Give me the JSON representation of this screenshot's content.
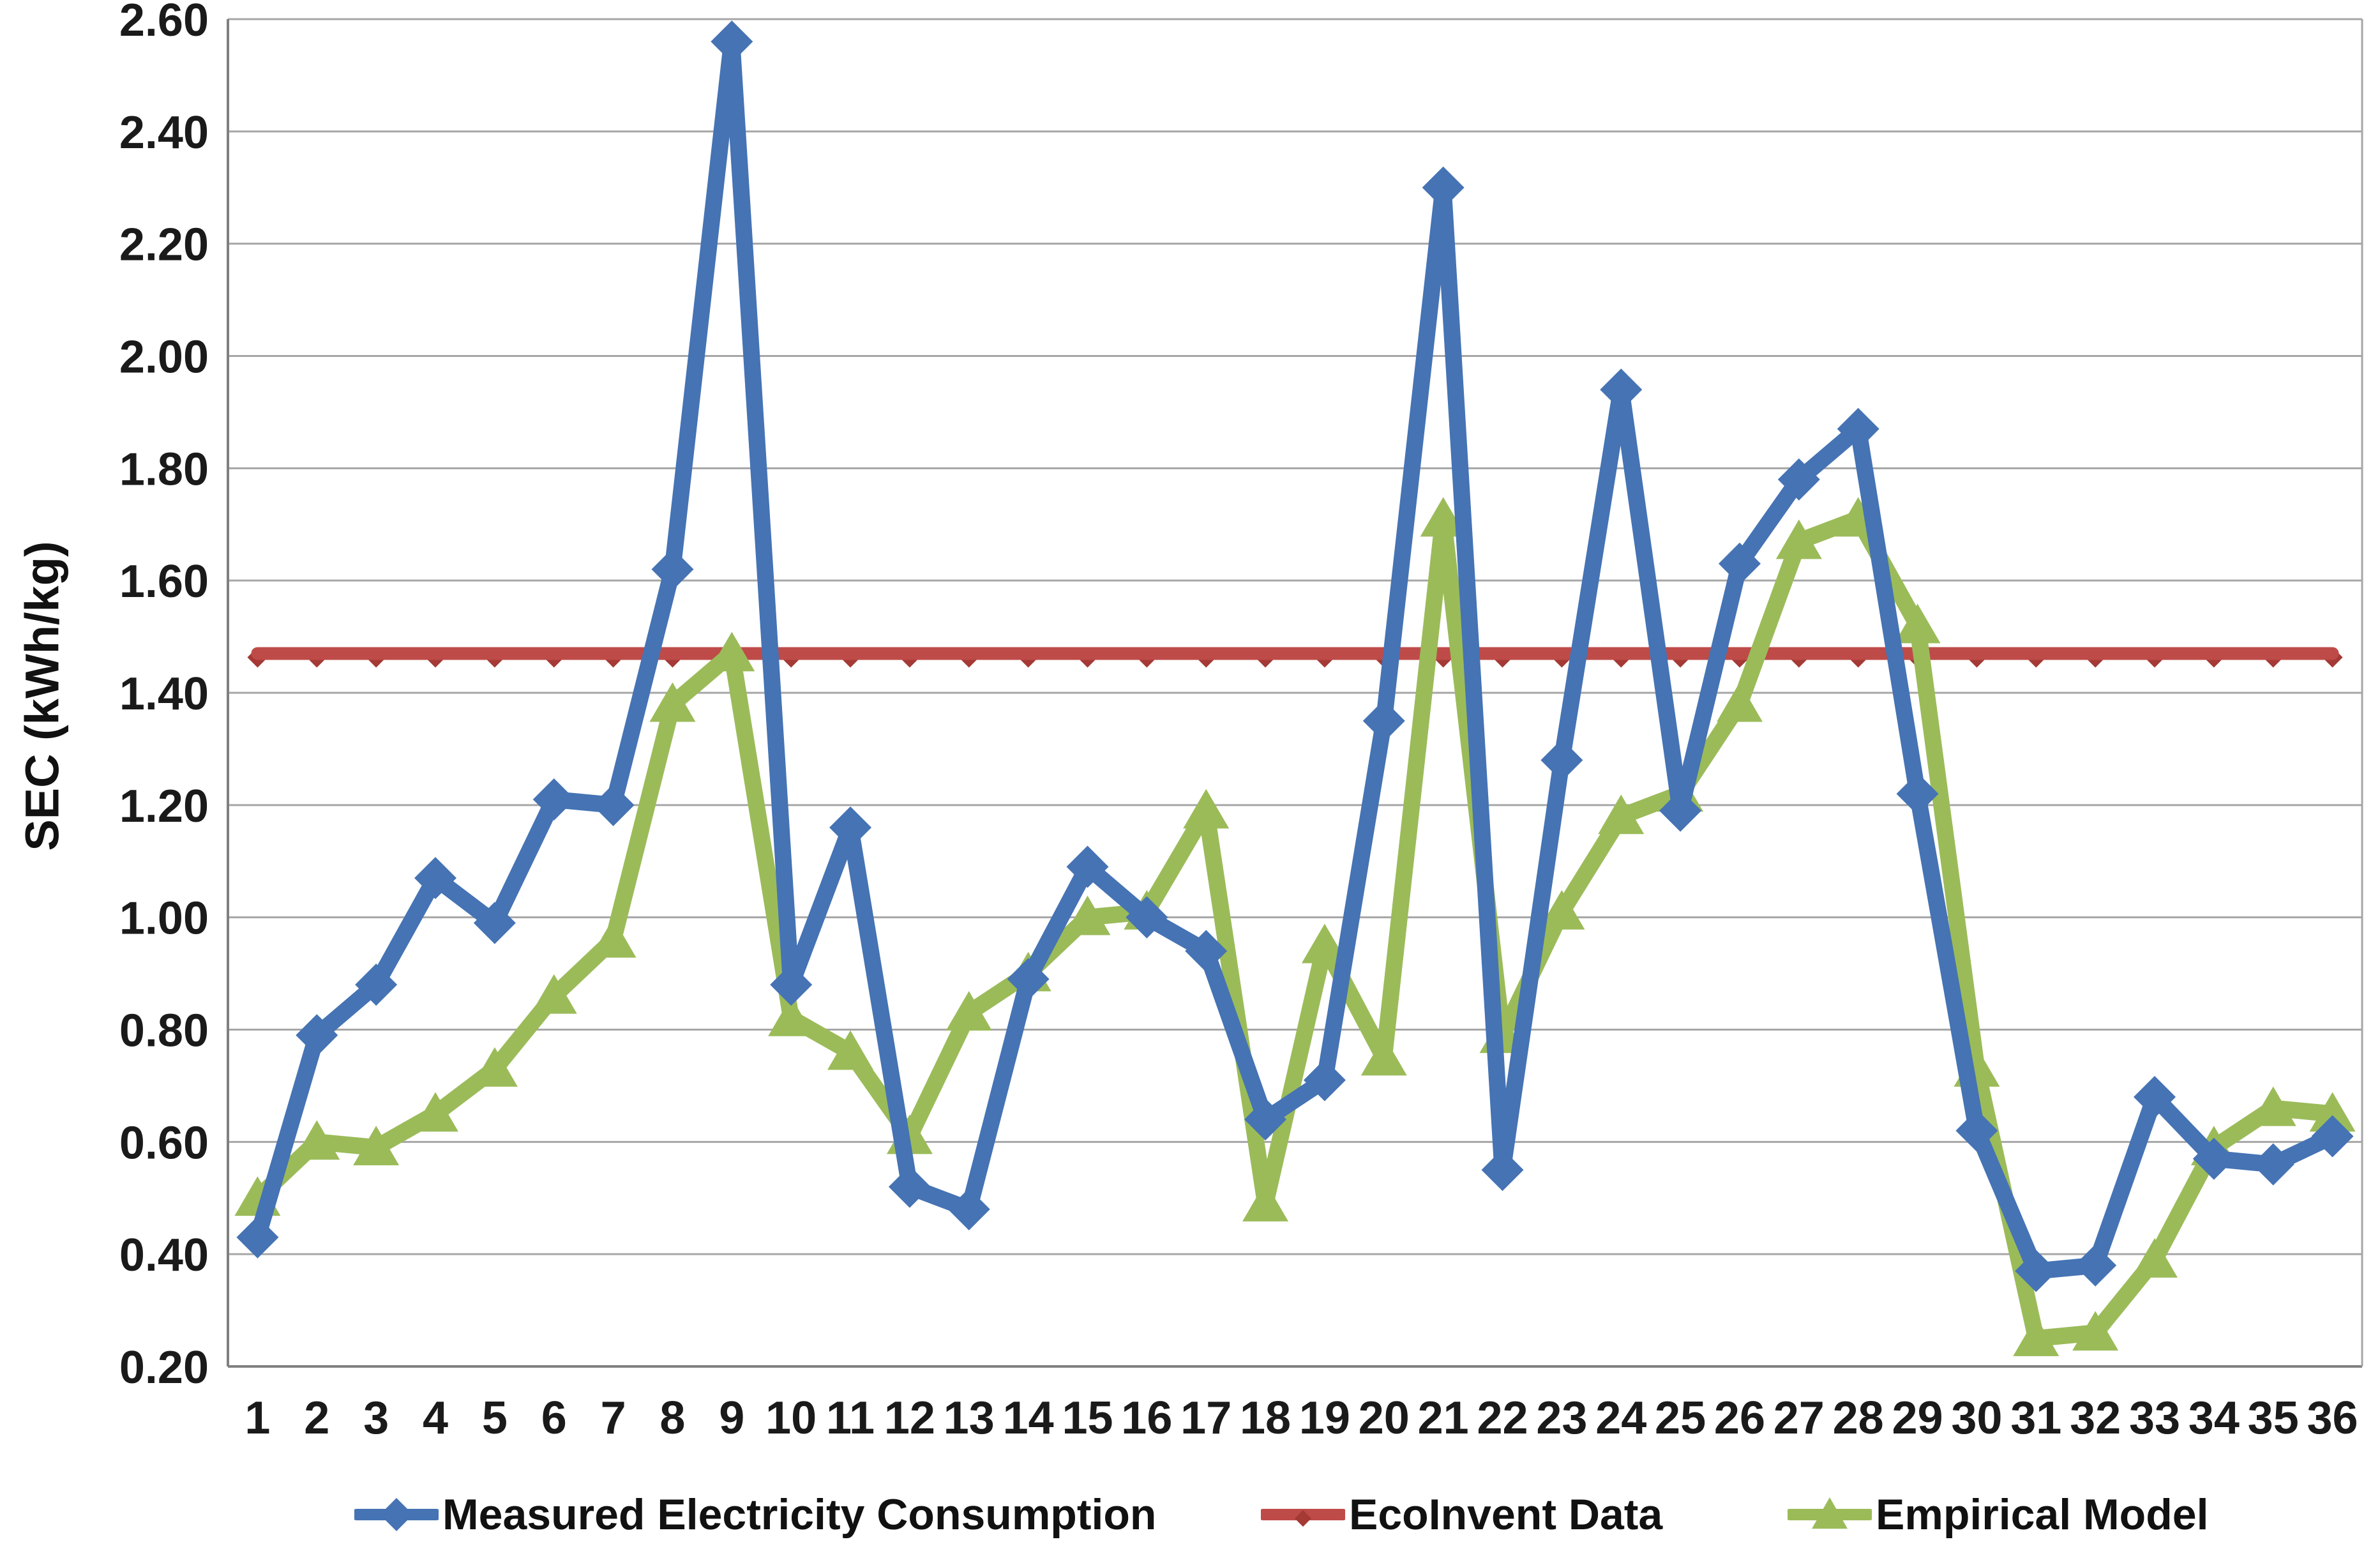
{
  "chart_data": {
    "type": "line",
    "title": "",
    "xlabel": "",
    "ylabel": "SEC (kWh/kg)",
    "ylim": [
      0.2,
      2.6
    ],
    "ytick_step": 0.2,
    "yticks": [
      "0.20",
      "0.40",
      "0.60",
      "0.80",
      "1.00",
      "1.20",
      "1.40",
      "1.60",
      "1.80",
      "2.00",
      "2.20",
      "2.40",
      "2.60"
    ],
    "x": [
      1,
      2,
      3,
      4,
      5,
      6,
      7,
      8,
      9,
      10,
      11,
      12,
      13,
      14,
      15,
      16,
      17,
      18,
      19,
      20,
      21,
      22,
      23,
      24,
      25,
      26,
      27,
      28,
      29,
      30,
      31,
      32,
      33,
      34,
      35,
      36
    ],
    "grid": "horizontal",
    "legend_position": "bottom",
    "series": [
      {
        "name": "Measured Electricity Consumption",
        "color": "#4573B4",
        "marker": "diamond",
        "values": [
          0.43,
          0.79,
          0.88,
          1.07,
          0.99,
          1.21,
          1.2,
          1.62,
          2.56,
          0.88,
          1.16,
          0.52,
          0.48,
          0.89,
          1.09,
          1.0,
          0.94,
          0.64,
          0.71,
          1.35,
          2.3,
          0.55,
          1.28,
          1.94,
          1.19,
          1.63,
          1.78,
          1.87,
          1.22,
          0.62,
          0.37,
          0.38,
          0.68,
          0.57,
          0.56,
          0.61
        ]
      },
      {
        "name": "EcoInvent Data",
        "color": "#BE4B48",
        "marker": "dash",
        "constant_value": 1.47,
        "values": [
          1.47,
          1.47,
          1.47,
          1.47,
          1.47,
          1.47,
          1.47,
          1.47,
          1.47,
          1.47,
          1.47,
          1.47,
          1.47,
          1.47,
          1.47,
          1.47,
          1.47,
          1.47,
          1.47,
          1.47,
          1.47,
          1.47,
          1.47,
          1.47,
          1.47,
          1.47,
          1.47,
          1.47,
          1.47,
          1.47,
          1.47,
          1.47,
          1.47,
          1.47,
          1.47,
          1.47
        ]
      },
      {
        "name": "Empirical Model",
        "color": "#9BBB59",
        "marker": "triangle-up",
        "values": [
          0.5,
          0.6,
          0.59,
          0.65,
          0.73,
          0.86,
          0.96,
          1.38,
          1.47,
          0.82,
          0.76,
          0.61,
          0.83,
          0.9,
          1.0,
          1.01,
          1.19,
          0.49,
          0.95,
          0.75,
          1.71,
          0.79,
          1.01,
          1.18,
          1.22,
          1.38,
          1.67,
          1.71,
          1.52,
          0.73,
          0.25,
          0.26,
          0.39,
          0.59,
          0.66,
          0.65
        ]
      }
    ],
    "style": {
      "gridline_color": "#A6A6A6",
      "axis_color": "#808080",
      "tick_label_color": "#1a1a1a",
      "ecoinvent_marker_color": "#A43935"
    }
  }
}
